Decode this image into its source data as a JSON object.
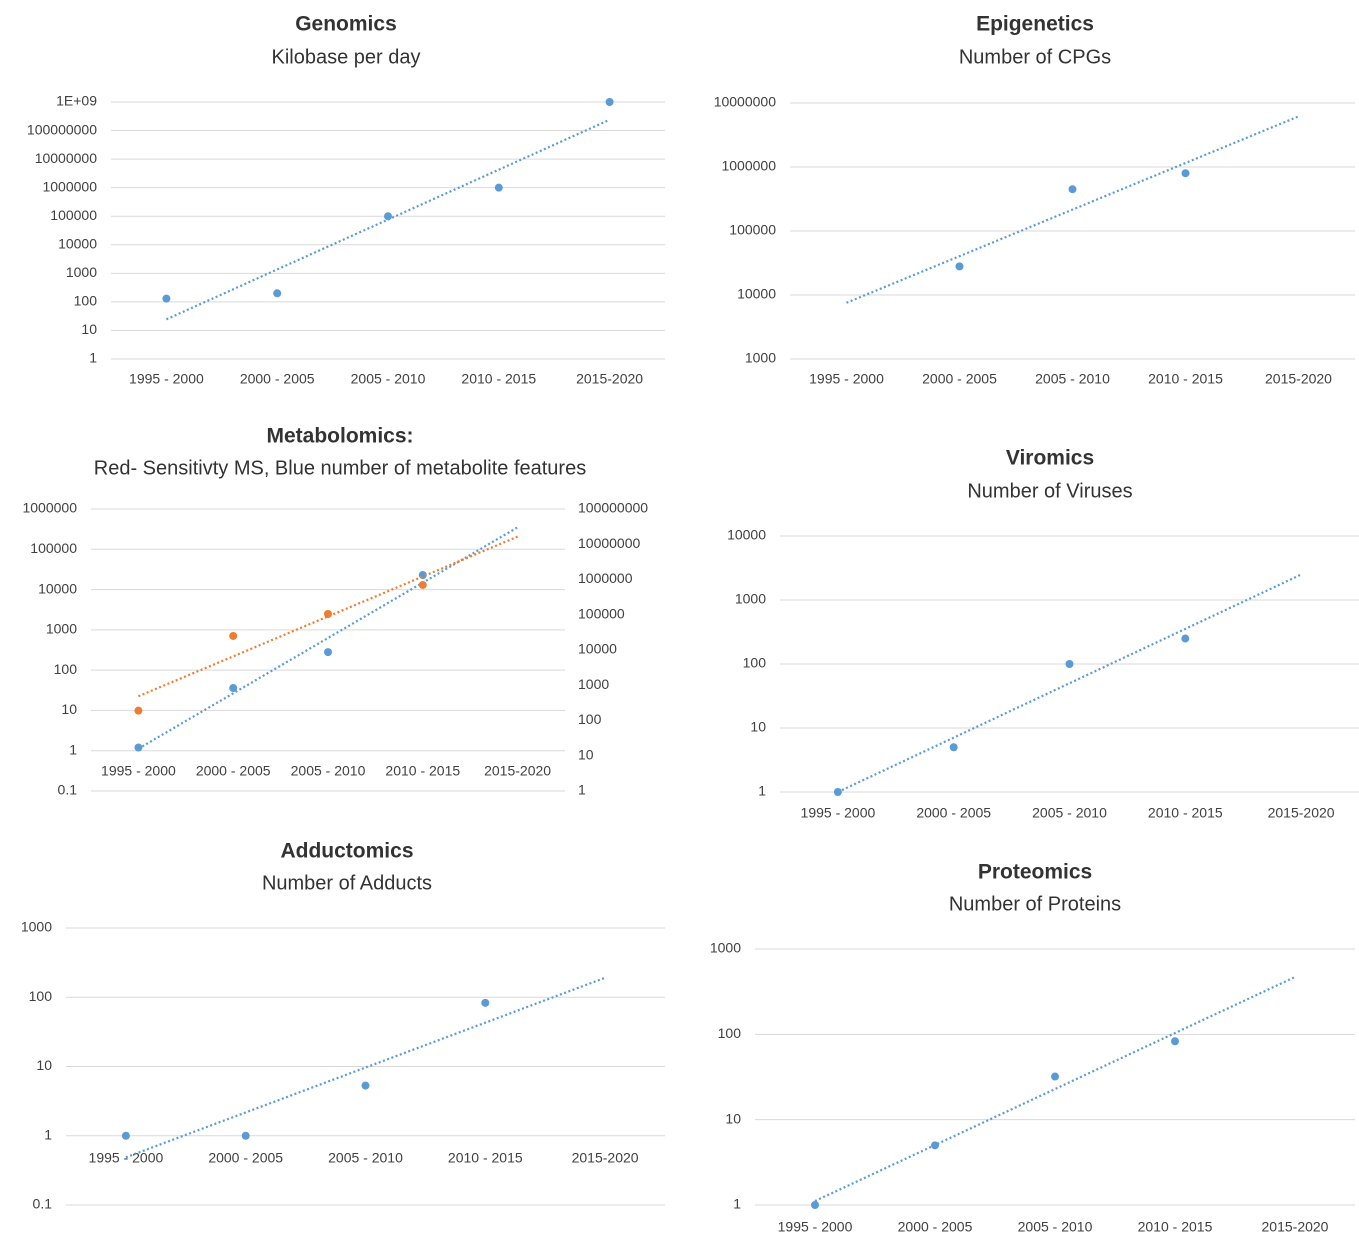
{
  "chart_data": [
    {
      "type": "scatter",
      "title": "Genomics",
      "subtitle": "Kilobase per day",
      "categories": [
        "1995 - 2000",
        "2000 - 2005",
        "2005 - 2010",
        "2010 - 2015",
        "2015-2020"
      ],
      "series": [
        {
          "color": "#5b9bd5",
          "values": [
            130,
            200,
            100000,
            1000000,
            1000000000
          ],
          "trendline": "exponential"
        }
      ],
      "yscale": "log",
      "ylim": [
        1,
        1000000000
      ],
      "yticks": [
        1,
        10,
        100,
        1000,
        10000,
        100000,
        1000000,
        10000000,
        100000000,
        {
          "value": 1000000000,
          "label": "1E+09"
        }
      ],
      "grid": true
    },
    {
      "type": "scatter",
      "title": "Epigenetics",
      "subtitle": "Number of CPGs",
      "categories": [
        "1995 - 2000",
        "2000 - 2005",
        "2005 - 2010",
        "2010 - 2015",
        "2015-2020"
      ],
      "series": [
        {
          "color": "#5b9bd5",
          "values": [
            null,
            28000,
            450000,
            800000,
            null
          ],
          "trendline": "exponential"
        }
      ],
      "yscale": "log",
      "ylim": [
        1000,
        10000000
      ],
      "yticks": [
        1000,
        10000,
        100000,
        1000000,
        10000000
      ],
      "grid": true
    },
    {
      "type": "scatter",
      "title": "Metabolomics:",
      "subtitle": "Red- Sensitivty MS, Blue number of metabolite features",
      "categories": [
        "1995 - 2000",
        "2000 - 2005",
        "2005 - 2010",
        "2010 - 2015",
        "2015-2020"
      ],
      "series": [
        {
          "color": "#5b9bd5",
          "values": [
            1.2,
            36,
            280,
            23000,
            null
          ],
          "trendline": "exponential"
        },
        {
          "color": "#ed7d31",
          "values": [
            190,
            25000,
            105000,
            700000,
            null
          ],
          "trendline": "exponential",
          "axis": "y2"
        }
      ],
      "yscale": "log",
      "ylim": [
        0.1,
        1000000
      ],
      "yticks": [
        0.1,
        1,
        10,
        100,
        1000,
        10000,
        100000,
        1000000
      ],
      "y2lim": [
        1,
        100000000
      ],
      "y2ticks": [
        1,
        10,
        100,
        1000,
        10000,
        100000,
        1000000,
        10000000,
        100000000
      ],
      "grid": true
    },
    {
      "type": "scatter",
      "title": "Viromics",
      "subtitle": "Number of Viruses",
      "categories": [
        "1995 - 2000",
        "2000 - 2005",
        "2005 - 2010",
        "2010 - 2015",
        "2015-2020"
      ],
      "series": [
        {
          "color": "#5b9bd5",
          "values": [
            1,
            5,
            100,
            250,
            null
          ],
          "trendline": "exponential"
        }
      ],
      "yscale": "log",
      "ylim": [
        1,
        10000
      ],
      "yticks": [
        1,
        10,
        100,
        1000,
        10000
      ],
      "grid": true
    },
    {
      "type": "scatter",
      "title": "Adductomics",
      "subtitle": "Number of Adducts",
      "categories": [
        "1995 - 2000",
        "2000 - 2005",
        "2005 - 2010",
        "2010 - 2015",
        "2015-2020"
      ],
      "series": [
        {
          "color": "#5b9bd5",
          "values": [
            1,
            1,
            5.3,
            83,
            null
          ],
          "trendline": "exponential"
        }
      ],
      "yscale": "log",
      "ylim": [
        0.1,
        1000
      ],
      "yticks": [
        0.1,
        1,
        10,
        100,
        1000
      ],
      "grid": true
    },
    {
      "type": "scatter",
      "title": "Proteomics",
      "subtitle": "Number of Proteins",
      "categories": [
        "1995 - 2000",
        "2000 - 2005",
        "2005 - 2010",
        "2010 - 2015",
        "2015-2020"
      ],
      "series": [
        {
          "color": "#5b9bd5",
          "values": [
            1,
            5,
            32,
            83,
            null
          ],
          "trendline": "exponential"
        }
      ],
      "yscale": "log",
      "ylim": [
        1,
        1000
      ],
      "yticks": [
        1,
        10,
        100,
        1000
      ],
      "grid": true
    }
  ]
}
